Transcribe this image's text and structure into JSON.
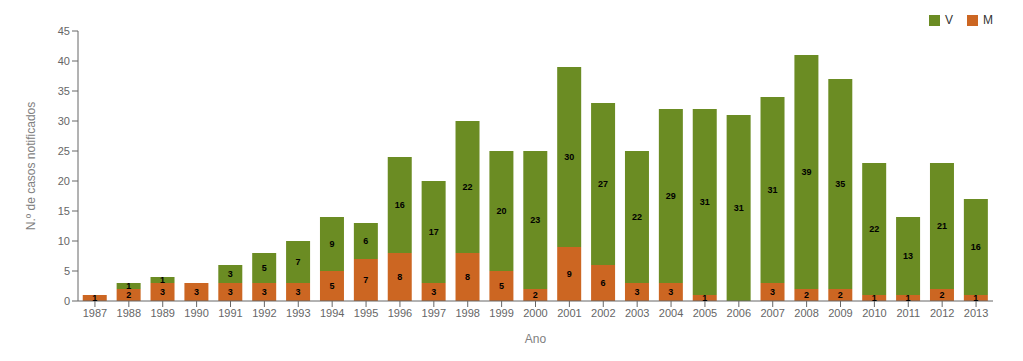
{
  "chart_data": {
    "type": "bar",
    "categories": [
      "1987",
      "1988",
      "1989",
      "1990",
      "1991",
      "1992",
      "1993",
      "1994",
      "1995",
      "1996",
      "1997",
      "1998",
      "1999",
      "2000",
      "2001",
      "2002",
      "2003",
      "2004",
      "2005",
      "2006",
      "2007",
      "2008",
      "2009",
      "2010",
      "2011",
      "2012",
      "2013"
    ],
    "series": [
      {
        "name": "M",
        "color": "#cc6622",
        "values": [
          1,
          2,
          3,
          3,
          3,
          3,
          3,
          5,
          7,
          8,
          3,
          8,
          5,
          2,
          9,
          6,
          3,
          3,
          1,
          0,
          3,
          2,
          2,
          1,
          1,
          2,
          1
        ]
      },
      {
        "name": "V",
        "color": "#6b8c23",
        "values": [
          0,
          1,
          1,
          0,
          3,
          5,
          7,
          9,
          6,
          16,
          17,
          22,
          20,
          23,
          30,
          27,
          22,
          29,
          31,
          31,
          31,
          39,
          35,
          22,
          13,
          21,
          16
        ]
      }
    ],
    "xlabel": "Ano",
    "ylabel": "N.º de casos notificados",
    "ylim": [
      0,
      45
    ],
    "yticks": [
      0,
      5,
      10,
      15,
      20,
      25,
      30,
      35,
      40,
      45
    ],
    "stacked": true,
    "data_labels": true,
    "legend": "upper right",
    "grid": false
  }
}
